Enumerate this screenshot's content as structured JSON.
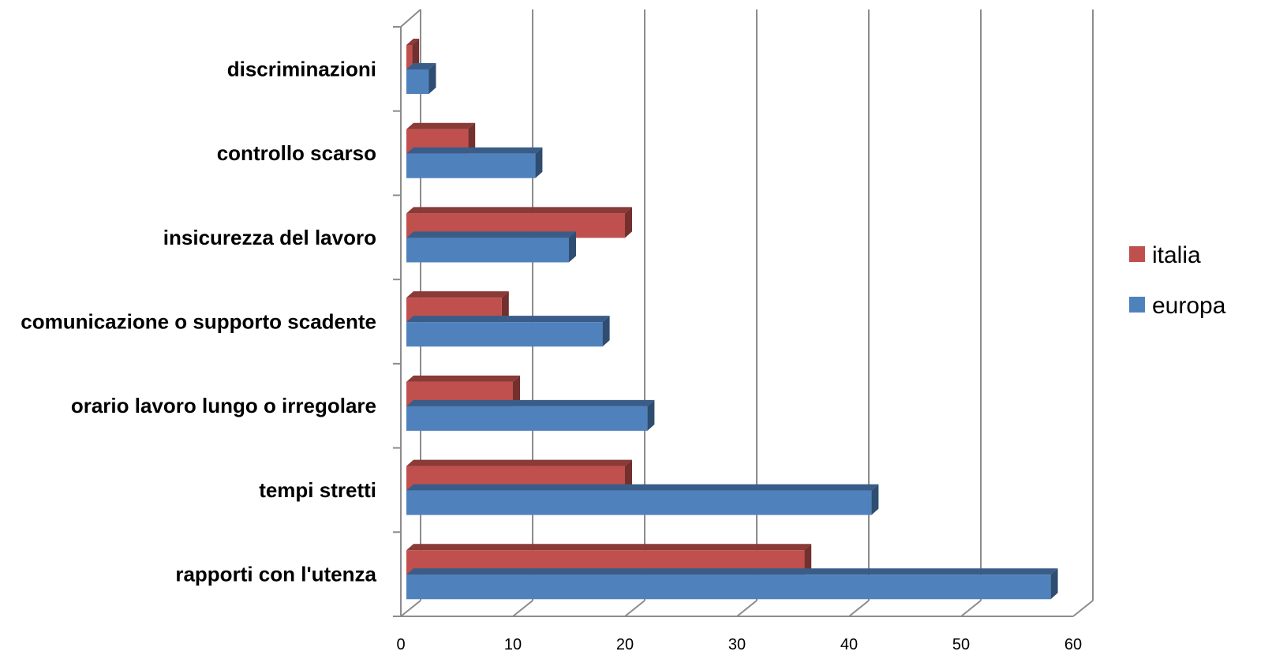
{
  "chart_data": {
    "type": "bar",
    "orientation": "horizontal",
    "style": "3d",
    "categories": [
      "rapporti con l'utenza",
      "tempi stretti",
      "orario lavoro lungo o irregolare",
      "comunicazione o supporto scadente",
      "insicurezza del lavoro",
      "controllo scarso",
      "discriminazioni"
    ],
    "series": [
      {
        "name": "italia",
        "color": "#C0504D",
        "values": [
          36,
          20,
          10,
          9,
          20,
          6,
          1
        ]
      },
      {
        "name": "europa",
        "color": "#4F81BD",
        "values": [
          58,
          42,
          22,
          18,
          15,
          12,
          2.5
        ]
      }
    ],
    "xlim": [
      0,
      60
    ],
    "xticks": [
      0,
      10,
      20,
      30,
      40,
      50,
      60
    ],
    "title": "",
    "xlabel": "",
    "ylabel": "",
    "grid": true,
    "legend": "right"
  }
}
